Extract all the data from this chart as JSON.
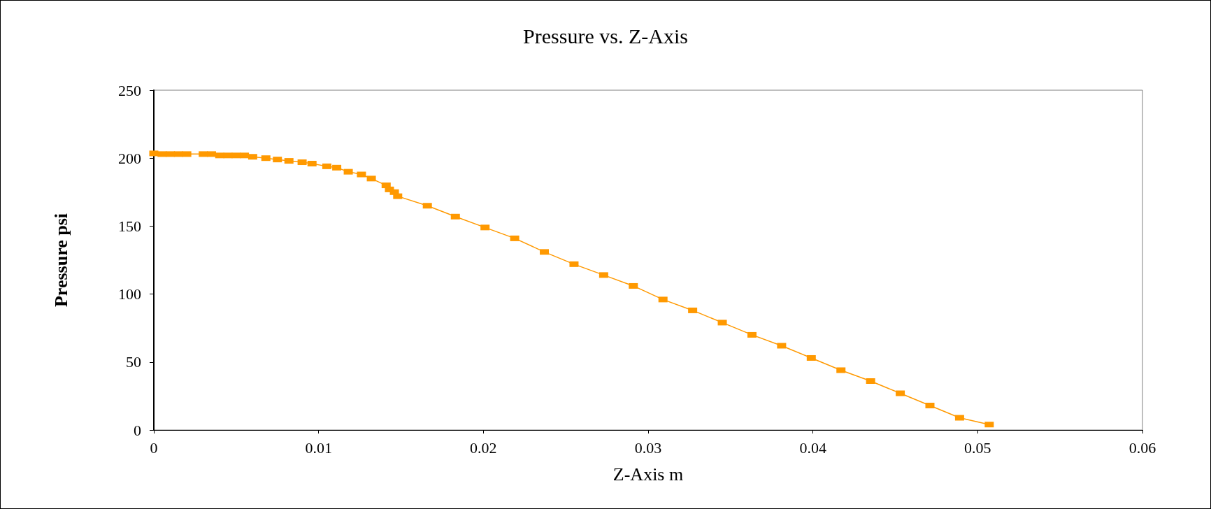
{
  "chart_data": {
    "type": "line",
    "title": "Pressure vs. Z-Axis",
    "xlabel": "Z-Axis m",
    "ylabel": "Pressure psi",
    "x": [
      0,
      0.0005,
      0.001,
      0.0015,
      0.002,
      0.003,
      0.0035,
      0.004,
      0.0045,
      0.005,
      0.0055,
      0.006,
      0.0068,
      0.0075,
      0.0082,
      0.009,
      0.0096,
      0.0105,
      0.0111,
      0.0118,
      0.0126,
      0.0132,
      0.0141,
      0.0143,
      0.0146,
      0.0148,
      0.0166,
      0.0183,
      0.0201,
      0.0219,
      0.0237,
      0.0255,
      0.0273,
      0.0291,
      0.0309,
      0.0327,
      0.0345,
      0.0363,
      0.0381,
      0.0399,
      0.0417,
      0.0435,
      0.0453,
      0.0471,
      0.0489,
      0.0507
    ],
    "series": [
      {
        "color": "#ff9900",
        "values": [
          203.5,
          203,
          203,
          203,
          203,
          203,
          203,
          202,
          202,
          202,
          202,
          201,
          200,
          199,
          198,
          197,
          196,
          194,
          193,
          190,
          188,
          185,
          180,
          177,
          175,
          172,
          165,
          157,
          149,
          141,
          131,
          122,
          114,
          106,
          96,
          88,
          79,
          70,
          62,
          53,
          44,
          36,
          27,
          18,
          9,
          4
        ]
      }
    ],
    "xlim": [
      0,
      0.06
    ],
    "xticks": [
      0,
      0.01,
      0.02,
      0.03,
      0.04,
      0.05,
      0.06
    ],
    "ylim": [
      0,
      250
    ],
    "yticks": [
      0,
      50,
      100,
      150,
      200,
      250
    ],
    "grid": false,
    "marker": "square",
    "line_style": "solid"
  }
}
